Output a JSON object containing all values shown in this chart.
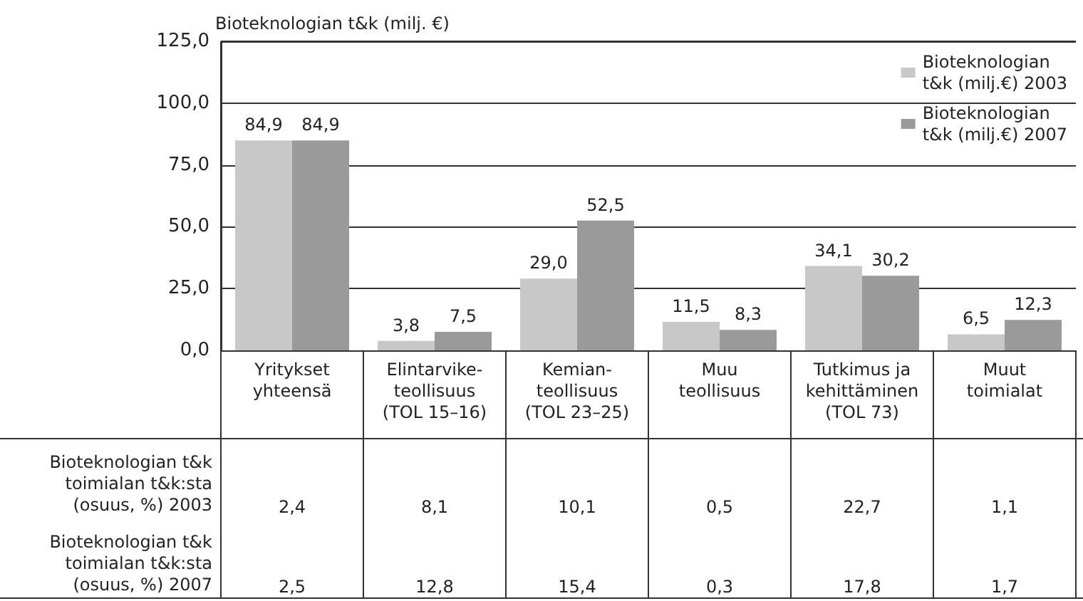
{
  "chart_data": {
    "type": "bar",
    "ylabel": "Bioteknologian t&k (milj. €)",
    "categories": [
      "Yritykset\nyhteensä",
      "Elintarvike-\nteollisuus\n(TOL 15–16)",
      "Kemian-\nteollisuus\n(TOL 23–25)",
      "Muu\nteollisuus",
      "Tutkimus ja\nkehittäminen\n(TOL 73)",
      "Muut\ntoimialat"
    ],
    "series": [
      {
        "name": "Bioteknologian\nt&k (milj.€) 2003",
        "color": "#c8c8c8",
        "values": [
          84.9,
          3.8,
          29.0,
          11.5,
          34.1,
          6.5
        ],
        "value_labels": [
          "84,9",
          "3,8",
          "29,0",
          "11,5",
          "34,1",
          "6,5"
        ]
      },
      {
        "name": "Bioteknologian\nt&k (milj.€) 2007",
        "color": "#9a9a9a",
        "values": [
          84.9,
          7.5,
          52.5,
          8.3,
          30.2,
          12.3
        ],
        "value_labels": [
          "84,9",
          "7,5",
          "52,5",
          "8,3",
          "30,2",
          "12,3"
        ]
      }
    ],
    "ylim": [
      0,
      125
    ],
    "yticks": [
      {
        "value": 0,
        "label": "0,0"
      },
      {
        "value": 25,
        "label": "25,0"
      },
      {
        "value": 50,
        "label": "50,0"
      },
      {
        "value": 75,
        "label": "75,0"
      },
      {
        "value": 100,
        "label": "100,0"
      },
      {
        "value": 125,
        "label": "125,0"
      }
    ],
    "grid": "y",
    "legend": "top right",
    "annotations": [
      "Bioteknologian t&k\ntoimialan t&k:sta\n(osuus, %) 2003",
      "2,4",
      "8,1",
      "10,1",
      "0,5",
      "22,7",
      "1,1",
      "Bioteknologian t&k\ntoimialan t&k:sta\n(osuus, %) 2007",
      "2,5",
      "12,8",
      "15,4",
      "0,3",
      "17,8",
      "1,7"
    ]
  }
}
